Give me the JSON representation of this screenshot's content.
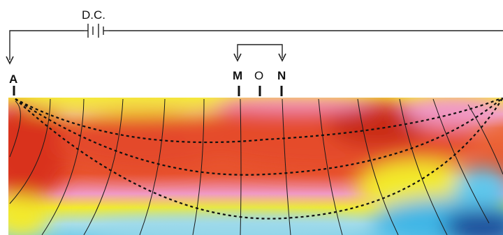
{
  "diagram": {
    "source_label": "D.C.",
    "electrodes": {
      "a": "A",
      "m": "M",
      "o": "O",
      "n": "N"
    }
  },
  "colors": {
    "deep_blue": "#1e4f9c",
    "cyan": "#3fb6e6",
    "yellow": "#f3ea2a",
    "pink": "#ee95c2",
    "orange_red": "#e8532c",
    "dark_red": "#cf2d1b"
  }
}
